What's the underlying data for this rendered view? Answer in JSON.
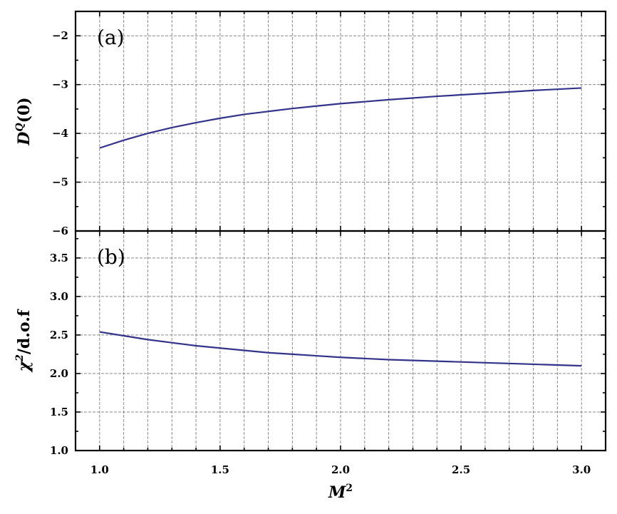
{
  "chart_data": [
    {
      "panel": "(a)",
      "type": "line",
      "title": "",
      "xlabel": "",
      "ylabel": "D^Q(0)",
      "ylabel_parts": {
        "base": "D",
        "sup": "Q",
        "rest": "(0)"
      },
      "xlim": [
        0.9,
        3.1
      ],
      "ylim": [
        -6,
        -1.5
      ],
      "xticks": [
        1.0,
        1.5,
        2.0,
        2.5,
        3.0
      ],
      "yticks": [
        -6,
        -5,
        -4,
        -3,
        -2
      ],
      "ytick_labels": [
        "−6",
        "−5",
        "−4",
        "−3",
        "−2"
      ],
      "grid": true,
      "series": [
        {
          "color": "#33338c",
          "x": [
            1.0,
            1.1,
            1.2,
            1.3,
            1.4,
            1.5,
            1.6,
            1.7,
            1.8,
            1.9,
            2.0,
            2.2,
            2.4,
            2.6,
            2.8,
            3.0
          ],
          "y": [
            -4.3,
            -4.14,
            -4.0,
            -3.88,
            -3.78,
            -3.69,
            -3.61,
            -3.55,
            -3.49,
            -3.44,
            -3.39,
            -3.31,
            -3.24,
            -3.18,
            -3.12,
            -3.07
          ]
        }
      ]
    },
    {
      "panel": "(b)",
      "type": "line",
      "title": "",
      "xlabel": "M^2",
      "xlabel_parts": {
        "base": "M",
        "sup": "2"
      },
      "ylabel": "χ^2/d.o.f",
      "ylabel_parts": {
        "base": "χ",
        "sup": "2",
        "rest": "/d.o.f"
      },
      "xlim": [
        0.9,
        3.1
      ],
      "ylim": [
        1.0,
        3.85
      ],
      "xticks": [
        1.0,
        1.5,
        2.0,
        2.5,
        3.0
      ],
      "xtick_labels": [
        "1.0",
        "1.5",
        "2.0",
        "2.5",
        "3.0"
      ],
      "yticks": [
        1.0,
        1.5,
        2.0,
        2.5,
        3.0,
        3.5
      ],
      "ytick_labels": [
        "1.0",
        "1.5",
        "2.0",
        "2.5",
        "3.0",
        "3.5"
      ],
      "grid": true,
      "series": [
        {
          "color": "#33338c",
          "x": [
            1.0,
            1.1,
            1.2,
            1.3,
            1.4,
            1.5,
            1.6,
            1.7,
            1.8,
            1.9,
            2.0,
            2.2,
            2.4,
            2.6,
            2.8,
            3.0
          ],
          "y": [
            2.54,
            2.49,
            2.44,
            2.4,
            2.36,
            2.33,
            2.3,
            2.27,
            2.25,
            2.23,
            2.21,
            2.18,
            2.16,
            2.14,
            2.12,
            2.1
          ]
        }
      ]
    }
  ]
}
